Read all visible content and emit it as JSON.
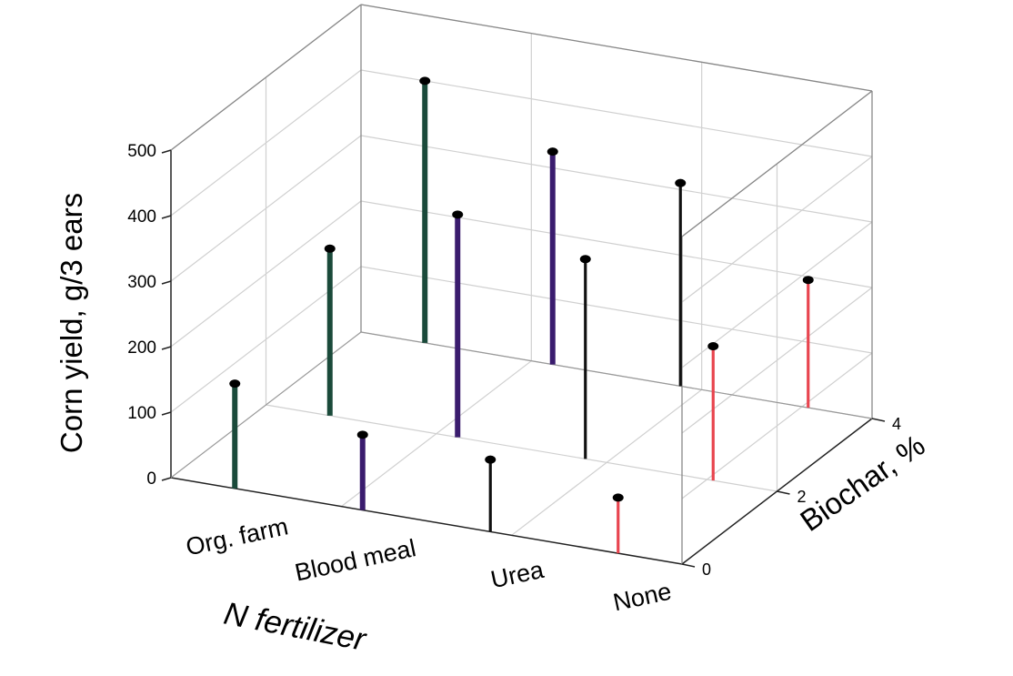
{
  "chart_data": {
    "type": "3d-stem",
    "title": "",
    "xlabel": "N fertilizer",
    "ylabel": "Biochar, %",
    "zlabel": "Corn yield, g/3 ears",
    "x_categories": [
      "Org. farm",
      "Blood meal",
      "Urea",
      "None"
    ],
    "y_ticks": [
      "0",
      "2",
      "4"
    ],
    "z_ticks": [
      "0",
      "100",
      "200",
      "300",
      "400",
      "500"
    ],
    "zlim": [
      0,
      500
    ],
    "grid": true,
    "series": [
      {
        "category": "Org. farm",
        "color": "#1a4a3a",
        "points": [
          {
            "biochar": 0,
            "yield": 160
          },
          {
            "biochar": 2,
            "yield": 255
          },
          {
            "biochar": 4,
            "yield": 400
          }
        ]
      },
      {
        "category": "Blood meal",
        "color": "#3a1c6e",
        "points": [
          {
            "biochar": 0,
            "yield": 115
          },
          {
            "biochar": 2,
            "yield": 340
          },
          {
            "biochar": 4,
            "yield": 325
          }
        ]
      },
      {
        "category": "Urea",
        "color": "#111111",
        "points": [
          {
            "biochar": 0,
            "yield": 110
          },
          {
            "biochar": 2,
            "yield": 305
          },
          {
            "biochar": 4,
            "yield": 310
          }
        ]
      },
      {
        "category": "None",
        "color": "#e8454f",
        "points": [
          {
            "biochar": 0,
            "yield": 85
          },
          {
            "biochar": 2,
            "yield": 205
          },
          {
            "biochar": 4,
            "yield": 195
          }
        ]
      }
    ]
  }
}
